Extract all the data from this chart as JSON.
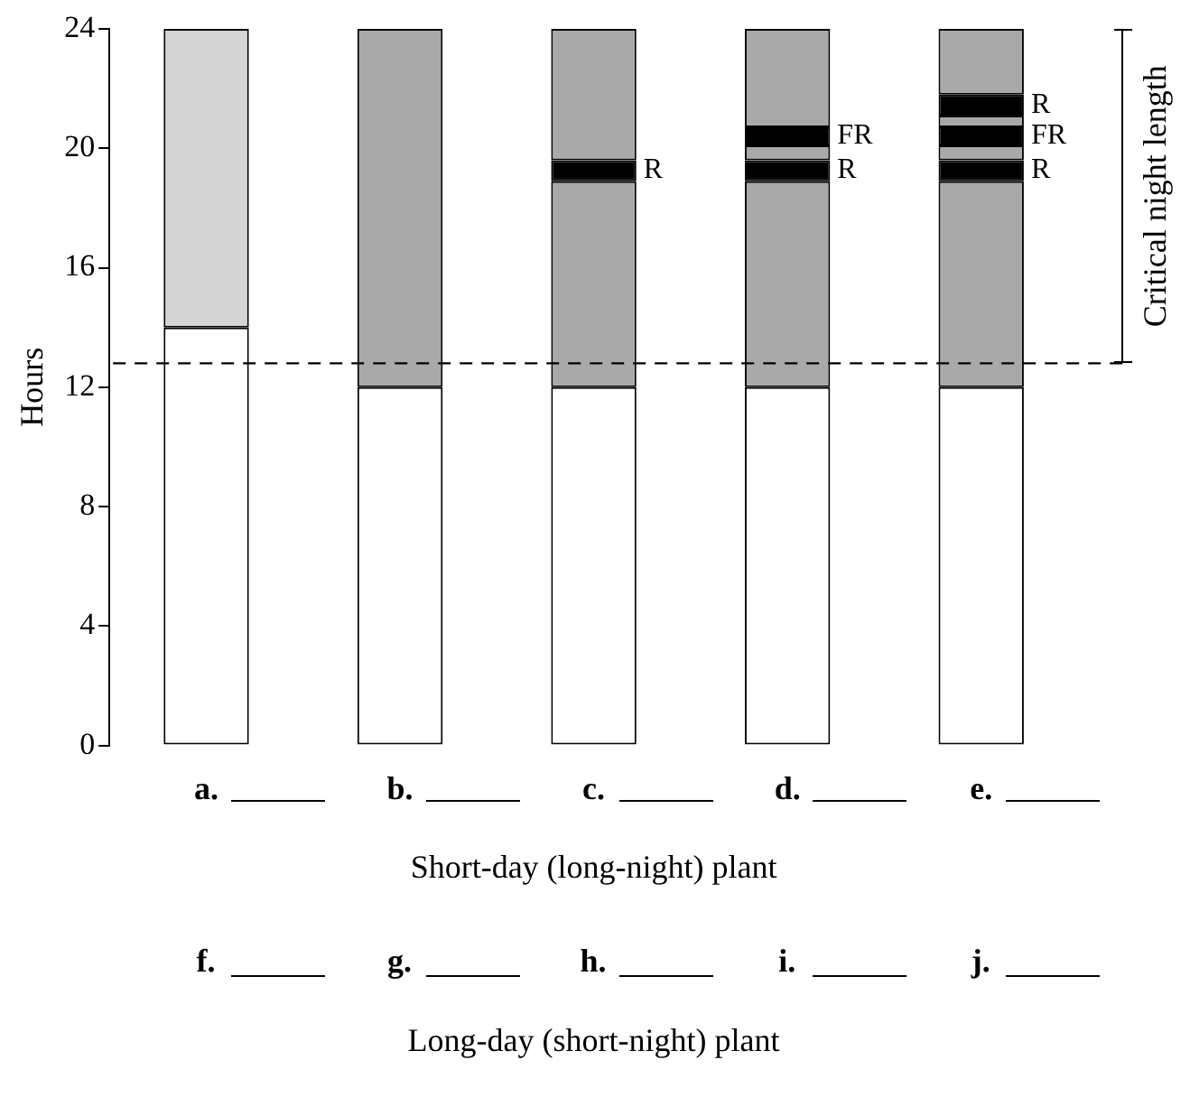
{
  "chart_data": {
    "type": "bar",
    "stacked": true,
    "ylabel": "Hours",
    "xlabel": "Short-day (long-night) plant",
    "categories": [
      "a.",
      "b.",
      "c.",
      "d.",
      "e."
    ],
    "series": [
      {
        "colors": [
          "#ffffff",
          "#ffffff",
          "#ffffff",
          "#ffffff",
          "#ffffff"
        ],
        "values": [
          14,
          12,
          12,
          12,
          12
        ]
      },
      {
        "colors": [
          "#d4d4d4",
          "#a9a9a9",
          "#a9a9a9",
          "#a9a9a9",
          "#a9a9a9"
        ],
        "values": [
          10,
          12,
          6.9,
          6.9,
          6.9
        ]
      },
      {
        "name": "R",
        "color": "#000000",
        "values": [
          null,
          null,
          0.7,
          0.7,
          0.7
        ]
      },
      {
        "color": "#a9a9a9",
        "values": [
          null,
          null,
          4.4,
          0.5,
          0.5
        ]
      },
      {
        "name": "FR",
        "color": "#000000",
        "values": [
          null,
          null,
          null,
          0.6,
          0.6
        ]
      },
      {
        "color": "#a9a9a9",
        "values": [
          null,
          null,
          null,
          3.3,
          0.4
        ]
      },
      {
        "name": "R",
        "color": "#000000",
        "values": [
          null,
          null,
          null,
          null,
          0.7
        ]
      },
      {
        "color": "#a9a9a9",
        "values": [
          null,
          null,
          null,
          null,
          2.2
        ]
      }
    ],
    "ylim": [
      0,
      24
    ],
    "yticks": [
      0,
      4,
      8,
      12,
      16,
      20,
      24
    ],
    "grid": false,
    "legend": false,
    "ref_lines": [
      {
        "axis": "y",
        "value": 12.8,
        "color": "#000000",
        "line_style": "dashed"
      }
    ],
    "annotations": [
      "Critical night length",
      "f.",
      "g.",
      "h.",
      "i.",
      "j.",
      "Long-day (short-night) plant"
    ]
  }
}
